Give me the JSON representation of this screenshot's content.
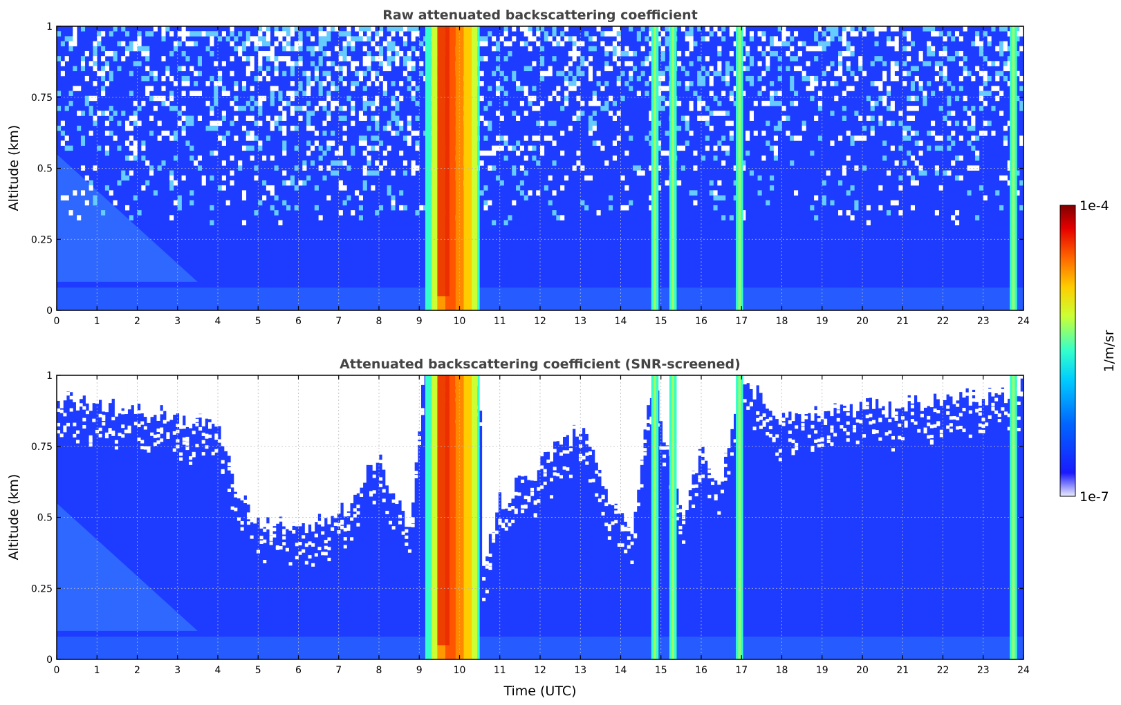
{
  "chart_data": [
    {
      "type": "heatmap",
      "title": "Raw attenuated backscattering coefficient",
      "ylabel": "Altitude (km)",
      "xlabel": "",
      "xlim": [
        0,
        24
      ],
      "ylim": [
        0,
        1
      ],
      "x_ticks": [
        "0",
        "1",
        "2",
        "3",
        "4",
        "5",
        "6",
        "7",
        "8",
        "9",
        "10",
        "11",
        "12",
        "13",
        "14",
        "15",
        "16",
        "17",
        "18",
        "19",
        "20",
        "21",
        "22",
        "23",
        "24"
      ],
      "y_ticks": [
        "0",
        "0.25",
        "0.5",
        "0.75",
        "1"
      ],
      "grid": true,
      "signal_features": {
        "strong_band_hours": [
          9.25,
          10.45
        ],
        "narrow_bands_hours": [
          14.85,
          15.3,
          16.95,
          23.75
        ],
        "noise_above_km": 0.3
      }
    },
    {
      "type": "heatmap",
      "title": "Attenuated backscattering coefficient (SNR-screened)",
      "ylabel": "Altitude (km)",
      "xlabel": "Time (UTC)",
      "xlim": [
        0,
        24
      ],
      "ylim": [
        0,
        1
      ],
      "x_ticks": [
        "0",
        "1",
        "2",
        "3",
        "4",
        "5",
        "6",
        "7",
        "8",
        "9",
        "10",
        "11",
        "12",
        "13",
        "14",
        "15",
        "16",
        "17",
        "18",
        "19",
        "20",
        "21",
        "22",
        "23",
        "24"
      ],
      "y_ticks": [
        "0",
        "0.25",
        "0.5",
        "0.75",
        "1"
      ],
      "grid": true,
      "screened_ceiling_km": [
        {
          "hour": 0,
          "km": 0.92
        },
        {
          "hour": 1,
          "km": 0.9
        },
        {
          "hour": 2,
          "km": 0.88
        },
        {
          "hour": 3,
          "km": 0.85
        },
        {
          "hour": 4,
          "km": 0.82
        },
        {
          "hour": 4.5,
          "km": 0.6
        },
        {
          "hour": 5,
          "km": 0.48
        },
        {
          "hour": 6,
          "km": 0.46
        },
        {
          "hour": 7,
          "km": 0.5
        },
        {
          "hour": 7.5,
          "km": 0.62
        },
        {
          "hour": 8,
          "km": 0.7
        },
        {
          "hour": 8.8,
          "km": 0.45
        },
        {
          "hour": 9.1,
          "km": 1.0
        },
        {
          "hour": 10.5,
          "km": 1.0
        },
        {
          "hour": 10.6,
          "km": 0.35
        },
        {
          "hour": 11,
          "km": 0.55
        },
        {
          "hour": 12,
          "km": 0.68
        },
        {
          "hour": 13,
          "km": 0.82
        },
        {
          "hour": 13.8,
          "km": 0.55
        },
        {
          "hour": 14.3,
          "km": 0.45
        },
        {
          "hour": 14.8,
          "km": 1.0
        },
        {
          "hour": 15.5,
          "km": 0.5
        },
        {
          "hour": 16,
          "km": 0.72
        },
        {
          "hour": 16.5,
          "km": 0.62
        },
        {
          "hour": 17,
          "km": 1.0
        },
        {
          "hour": 18,
          "km": 0.84
        },
        {
          "hour": 20,
          "km": 0.88
        },
        {
          "hour": 22,
          "km": 0.9
        },
        {
          "hour": 24,
          "km": 0.95
        }
      ]
    }
  ],
  "colorbar": {
    "max_label": "1e-4",
    "min_label": "1e-7",
    "unit_label": "1/m/sr",
    "colormap": [
      "#ececff",
      "#1a1aff",
      "#0066ff",
      "#00ccff",
      "#33ffcc",
      "#ccff33",
      "#ffcc00",
      "#ff6600",
      "#e60000",
      "#800000"
    ]
  }
}
